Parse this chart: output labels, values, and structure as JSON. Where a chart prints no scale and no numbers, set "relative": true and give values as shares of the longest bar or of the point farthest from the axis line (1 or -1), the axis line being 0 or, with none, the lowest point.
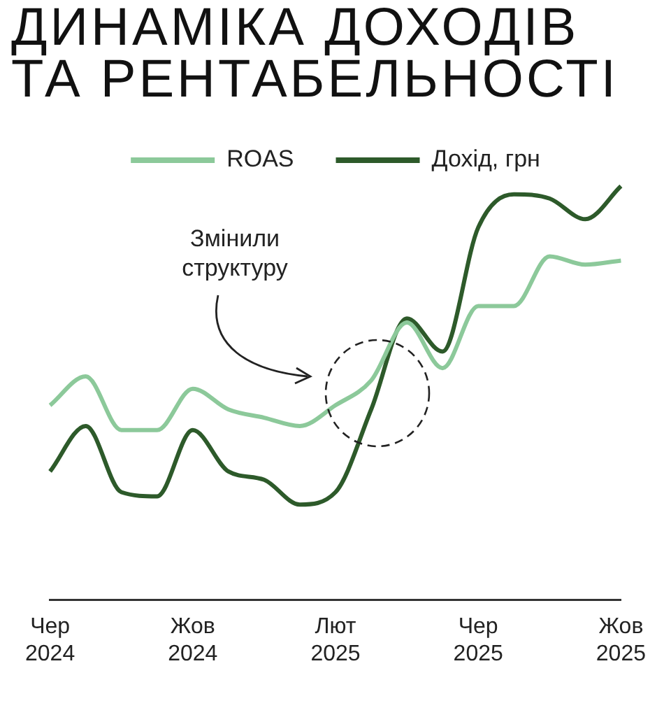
{
  "chart_data": {
    "type": "line",
    "title": "ДИНАМІКА ДОХОДІВ ТА РЕНТАБЕЛЬНОСТІ",
    "relative": true,
    "legend": "top",
    "marker": "none",
    "line_style": "solid",
    "categories": [
      "Чер 2024",
      null,
      null,
      null,
      "Жов 2024",
      null,
      null,
      null,
      "Лют 2025",
      null,
      null,
      null,
      "Чер 2025",
      null,
      null,
      null,
      "Жов 2025"
    ],
    "series": [
      {
        "name": "ROAS",
        "color": "#8cc99a",
        "values": [
          0.47,
          0.54,
          0.41,
          0.41,
          0.51,
          0.46,
          0.44,
          0.42,
          0.47,
          0.53,
          0.67,
          0.56,
          0.71,
          0.71,
          0.83,
          0.81,
          0.82
        ]
      },
      {
        "name": "Дохід, грн",
        "color": "#2d5a2a",
        "values": [
          0.31,
          0.42,
          0.26,
          0.25,
          0.41,
          0.31,
          0.29,
          0.23,
          0.26,
          0.46,
          0.68,
          0.6,
          0.9,
          0.98,
          0.97,
          0.92,
          1
        ]
      }
    ],
    "annotations": [
      "Змінили структуру"
    ]
  }
}
